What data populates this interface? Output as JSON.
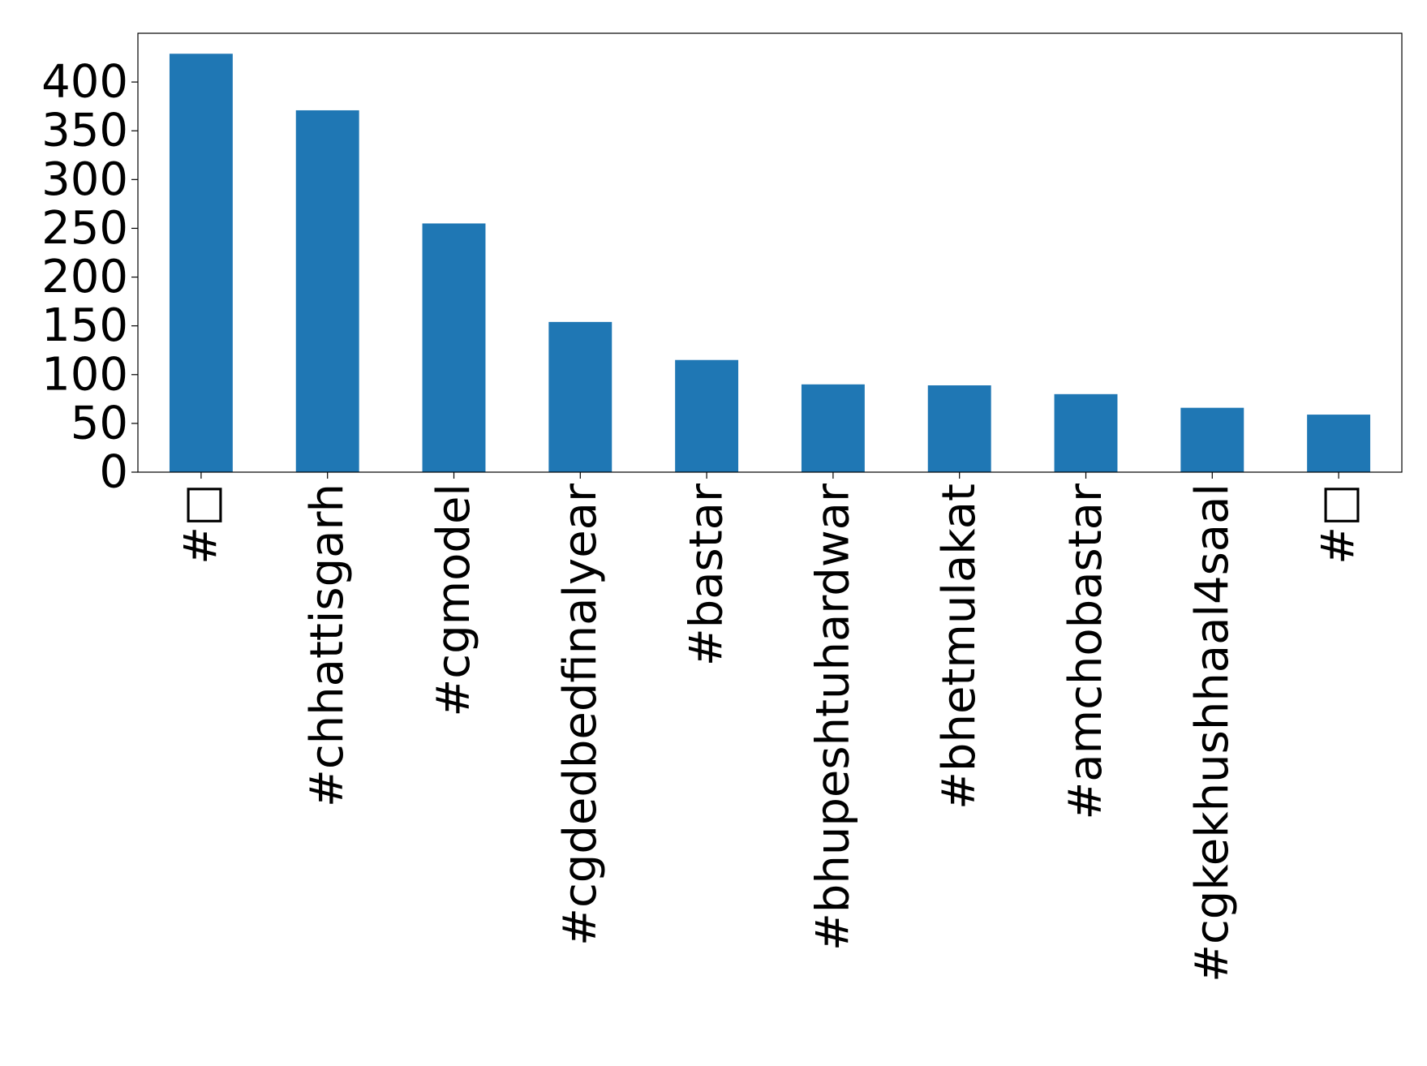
{
  "chart_data": {
    "type": "bar",
    "categories": [
      "#□",
      "#chhattisgarh",
      "#cgmodel",
      "#cgdedbedfinalyear",
      "#bastar",
      "#bhupeshtuhardwar",
      "#bhetmulakat",
      "#amchobastar",
      "#cgkekhushhaal4saal",
      "#□"
    ],
    "values": [
      429,
      371,
      255,
      154,
      115,
      90,
      89,
      80,
      66,
      59
    ],
    "color": "#1f77b4",
    "ylim": [
      0,
      450
    ],
    "yticks": [
      0,
      50,
      100,
      150,
      200,
      250,
      300,
      350,
      400
    ],
    "grid": false
  }
}
